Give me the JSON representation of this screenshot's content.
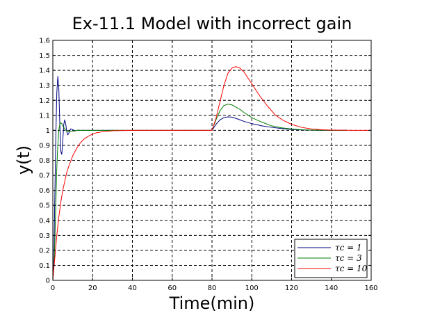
{
  "chart_data": {
    "type": "line",
    "title": "Ex-11.1 Model with incorrect gain",
    "xlabel": "Time(min)",
    "ylabel": "y(t)",
    "xlim": [
      0,
      160
    ],
    "ylim": [
      0,
      1.6
    ],
    "xticks": [
      0,
      20,
      40,
      60,
      80,
      100,
      120,
      140,
      160
    ],
    "yticks": [
      0,
      0.1,
      0.2,
      0.3,
      0.4,
      0.5,
      0.6,
      0.7,
      0.8,
      0.9,
      1,
      1.1,
      1.2,
      1.3,
      1.4,
      1.5,
      1.6
    ],
    "grid": true,
    "legend_position": "bottom-right",
    "series": [
      {
        "name": "τc = 1",
        "color": "#00007f",
        "x": [
          0,
          0.5,
          1,
          1.5,
          2,
          2.5,
          3,
          3.5,
          4,
          4.5,
          5,
          5.5,
          6,
          6.5,
          7,
          7.5,
          8,
          9,
          10,
          11,
          12,
          14,
          16,
          20,
          30,
          80,
          82,
          84,
          86,
          88,
          90,
          92,
          94,
          96,
          100,
          105,
          110,
          115,
          120,
          125,
          130,
          135,
          140,
          145,
          148
        ],
        "y": [
          0,
          0.15,
          0.55,
          0.95,
          1.25,
          1.36,
          1.28,
          1.05,
          0.86,
          0.84,
          0.93,
          1.04,
          1.07,
          1.04,
          0.99,
          0.97,
          0.98,
          1.01,
          1.005,
          0.995,
          1.0,
          1.0,
          1.0,
          1.0,
          1.0,
          1.0,
          1.04,
          1.07,
          1.085,
          1.09,
          1.088,
          1.08,
          1.07,
          1.06,
          1.045,
          1.03,
          1.02,
          1.012,
          1.006,
          1.003,
          1.001,
          1.0,
          1.0,
          1.0,
          1.0
        ]
      },
      {
        "name": "τc = 3",
        "color": "#007f00",
        "x": [
          0,
          0.5,
          1,
          1.5,
          2,
          2.5,
          3,
          3.5,
          4,
          4.5,
          5,
          6,
          7,
          8,
          10,
          12,
          14,
          16,
          20,
          30,
          80,
          82,
          84,
          86,
          88,
          90,
          92,
          94,
          96,
          100,
          105,
          110,
          115,
          120,
          125,
          130,
          135,
          140,
          145,
          148
        ],
        "y": [
          0,
          0.08,
          0.25,
          0.5,
          0.75,
          0.9,
          1.0,
          1.04,
          1.05,
          1.045,
          1.03,
          1.01,
          0.995,
          0.99,
          0.995,
          1.0,
          1.0,
          1.0,
          1.0,
          1.0,
          1.0,
          1.07,
          1.13,
          1.165,
          1.175,
          1.17,
          1.155,
          1.14,
          1.12,
          1.085,
          1.055,
          1.03,
          1.017,
          1.009,
          1.004,
          1.002,
          1.001,
          1.0,
          1.0,
          1.0
        ]
      },
      {
        "name": "τc = 10",
        "color": "#ff0000",
        "x": [
          0,
          1,
          2,
          3,
          4,
          5,
          6,
          7,
          8,
          10,
          12,
          14,
          16,
          18,
          20,
          22,
          25,
          30,
          40,
          60,
          80,
          82,
          84,
          86,
          88,
          90,
          92,
          94,
          96,
          98,
          100,
          104,
          108,
          112,
          116,
          120,
          125,
          130,
          135,
          140,
          145,
          150,
          160
        ],
        "y": [
          0,
          0.15,
          0.3,
          0.42,
          0.52,
          0.6,
          0.66,
          0.72,
          0.76,
          0.83,
          0.88,
          0.92,
          0.945,
          0.962,
          0.975,
          0.984,
          0.991,
          0.997,
          1.0,
          1.0,
          1.0,
          1.08,
          1.19,
          1.3,
          1.38,
          1.415,
          1.425,
          1.415,
          1.39,
          1.35,
          1.31,
          1.23,
          1.16,
          1.1,
          1.065,
          1.04,
          1.02,
          1.009,
          1.004,
          1.002,
          1.001,
          1.0,
          1.0
        ]
      }
    ]
  }
}
